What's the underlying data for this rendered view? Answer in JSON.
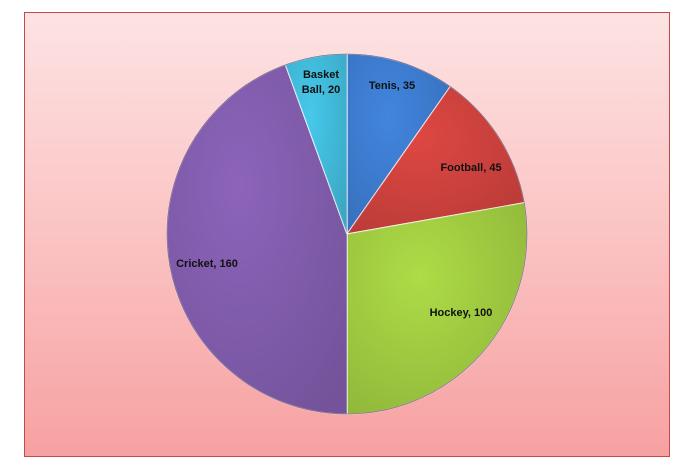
{
  "chart_data": {
    "type": "pie",
    "title": "",
    "slices": [
      {
        "label": "Tenis",
        "value": 35,
        "color": "#3b78c9",
        "text": "Tenis, 35"
      },
      {
        "label": "Football",
        "value": 45,
        "color": "#c8403c",
        "text": "Football, 45"
      },
      {
        "label": "Hockey",
        "value": 100,
        "color": "#9cc63f",
        "text": "Hockey, 100"
      },
      {
        "label": "Cricket",
        "value": 160,
        "color": "#7e5aa8",
        "text": "Cricket, 160"
      },
      {
        "label": "Basket Ball",
        "value": 20,
        "color": "#3fb5d4",
        "text": "Basket Ball, 20"
      }
    ],
    "start_angle_deg": 0,
    "direction": "clockwise",
    "legend": "none",
    "data_labels": "inside"
  }
}
